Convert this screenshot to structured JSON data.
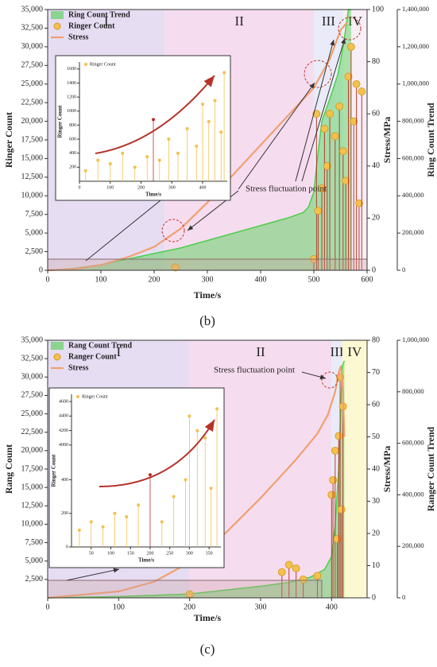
{
  "chart_data": [
    {
      "type": "combo",
      "panel": "(b)",
      "xlabel": "Time/s",
      "ylabel": "Ringer Count",
      "y2label": "Stress/MPa",
      "y3label": "Ring Count Trend",
      "annotation": "Stress fluctuation point",
      "xlim": [
        0,
        600
      ],
      "xticks": [
        0,
        100,
        200,
        300,
        400,
        500,
        600
      ],
      "ylim": [
        0,
        35000
      ],
      "yticks": [
        0,
        {
          "value": 2500,
          "label": "2,500"
        },
        {
          "value": 5000,
          "label": "5,000"
        },
        {
          "value": 7500,
          "label": "7,500"
        },
        {
          "value": 10000,
          "label": "10,000"
        },
        {
          "value": 12500,
          "label": "12,500"
        },
        {
          "value": 15000,
          "label": "15,000"
        },
        {
          "value": 17500,
          "label": "17,500"
        },
        {
          "value": 20000,
          "label": "20,000"
        },
        {
          "value": 22500,
          "label": "22,500"
        },
        {
          "value": 25000,
          "label": "25,000"
        },
        {
          "value": 27500,
          "label": "27,500"
        },
        {
          "value": 30000,
          "label": "30,000"
        },
        {
          "value": 32500,
          "label": "32,500"
        },
        {
          "value": 35000,
          "label": "35,000"
        }
      ],
      "y2lim": [
        0,
        100
      ],
      "y2ticks": [
        0,
        20,
        40,
        60,
        80,
        100
      ],
      "y3lim": [
        0,
        1400000
      ],
      "y3ticks": [
        0,
        {
          "value": 200000,
          "label": "200,000"
        },
        {
          "value": 400000,
          "label": "400,000"
        },
        {
          "value": 600000,
          "label": "600,000"
        },
        {
          "value": 800000,
          "label": "800,000"
        },
        {
          "value": 1000000,
          "label": "1,000,000"
        },
        {
          "value": 1200000,
          "label": "1,200,000"
        },
        {
          "value": 1400000,
          "label": "1,400,000"
        }
      ],
      "regions": [
        {
          "label": "I",
          "from": 0,
          "to": 220,
          "color": "#e6ddf3"
        },
        {
          "label": "II",
          "from": 220,
          "to": 500,
          "color": "#f6dcef"
        },
        {
          "label": "III",
          "from": 500,
          "to": 555,
          "color": "#e9ebf8"
        },
        {
          "label": "IV",
          "from": 555,
          "to": 600,
          "color": "#f7eef6"
        }
      ],
      "series": [
        {
          "name": "Ring Count Trend",
          "type": "area",
          "axis": "y3",
          "color": "#4ccf4c",
          "x": [
            0,
            50,
            100,
            150,
            200,
            250,
            300,
            350,
            400,
            450,
            480,
            490,
            500,
            505,
            515,
            530,
            545,
            555,
            565,
            570
          ],
          "values": [
            0,
            10000,
            30000,
            60000,
            90000,
            120000,
            160000,
            200000,
            240000,
            280000,
            310000,
            340000,
            420000,
            560000,
            800000,
            920000,
            1050000,
            1200000,
            1400000,
            1400000
          ]
        },
        {
          "name": "Ringer Count",
          "type": "scatter",
          "axis": "y",
          "color": "#f2c14e",
          "x": [
            240,
            500,
            505,
            508,
            515,
            520,
            525,
            530,
            540,
            548,
            555,
            560,
            565,
            570,
            575,
            580,
            585,
            590
          ],
          "values": [
            400,
            1500,
            21000,
            8000,
            11000,
            19000,
            14000,
            21000,
            18000,
            22000,
            16000,
            12000,
            26000,
            30000,
            20000,
            25000,
            9000,
            24000
          ]
        },
        {
          "name": "Stress",
          "type": "line",
          "axis": "y2",
          "color": "#f0a070",
          "x": [
            0,
            50,
            100,
            150,
            200,
            250,
            300,
            350,
            400,
            450,
            500,
            530,
            550,
            562
          ],
          "values": [
            0,
            0.5,
            2,
            5,
            9,
            16,
            26,
            37,
            48,
            59,
            70,
            81,
            92,
            95
          ]
        }
      ],
      "inset": {
        "xlabel": "Time/s",
        "ylabel": "Ringer Count",
        "xlim": [
          0,
          480
        ],
        "xticks": [
          0,
          100,
          200,
          300,
          400
        ],
        "ylim": [
          0,
          1700
        ],
        "yticks": [
          200,
          400,
          600,
          800,
          1000,
          1200,
          1400,
          1600
        ],
        "series": [
          {
            "name": "Ringer Count",
            "color": "#f2c14e",
            "x": [
              20,
              60,
              100,
              140,
              180,
              220,
              260,
              290,
              320,
              350,
              380,
              400,
              420,
              440,
              460,
              470
            ],
            "values": [
              150,
              300,
              250,
              400,
              200,
              350,
              300,
              600,
              400,
              750,
              500,
              1100,
              850,
              1150,
              700,
              1550
            ]
          },
          {
            "color": "#b5322a",
            "x": [
              240
            ],
            "values": [
              880
            ]
          }
        ]
      }
    },
    {
      "type": "combo",
      "panel": "(c)",
      "xlabel": "Time/s",
      "ylabel": "Rang Count",
      "y2label": "Stress/MPa",
      "y3label": "Ranger Count Trend",
      "annotation": "Stress fluctuation point",
      "xlim": [
        0,
        450
      ],
      "xticks": [
        0,
        100,
        200,
        300,
        400
      ],
      "ylim": [
        0,
        35000
      ],
      "yticks": [
        {
          "value": 2500,
          "label": "2,500"
        },
        {
          "value": 5000,
          "label": "5,000"
        },
        {
          "value": 7500,
          "label": "7,500"
        },
        {
          "value": 10000,
          "label": "10,000"
        },
        {
          "value": 12500,
          "label": "12,500"
        },
        {
          "value": 15000,
          "label": "15,000"
        },
        {
          "value": 17500,
          "label": "17,500"
        },
        {
          "value": 20000,
          "label": "20,000"
        },
        {
          "value": 22500,
          "label": "22,500"
        },
        {
          "value": 25000,
          "label": "25,000"
        },
        {
          "value": 27500,
          "label": "27,500"
        },
        {
          "value": 30000,
          "label": "30,000"
        },
        {
          "value": 32500,
          "label": "32,500"
        },
        {
          "value": 35000,
          "label": "35,000"
        }
      ],
      "y2lim": [
        0,
        80
      ],
      "y2ticks": [
        0,
        10,
        20,
        30,
        40,
        50,
        60,
        70,
        80
      ],
      "y3lim": [
        0,
        1000000
      ],
      "y3ticks": [
        0,
        {
          "value": 200000,
          "label": "200,000"
        },
        {
          "value": 400000,
          "label": "400,000"
        },
        {
          "value": 600000,
          "label": "600,000"
        },
        {
          "value": 800000,
          "label": "800,000"
        },
        {
          "value": 1000000,
          "label": "1,000,000"
        }
      ],
      "regions": [
        {
          "label": "I",
          "from": 0,
          "to": 200,
          "color": "#e6ddf3"
        },
        {
          "label": "II",
          "from": 200,
          "to": 400,
          "color": "#f6dcef"
        },
        {
          "label": "III",
          "from": 400,
          "to": 415,
          "color": "#e9ebf8"
        },
        {
          "label": "IV",
          "from": 415,
          "to": 450,
          "color": "#fbf8d2"
        }
      ],
      "series": [
        {
          "name": "Rang Count Trend",
          "type": "area",
          "axis": "y3",
          "color": "#4ccf4c",
          "x": [
            0,
            100,
            200,
            250,
            300,
            340,
            370,
            390,
            400,
            405,
            410,
            415,
            418
          ],
          "values": [
            0,
            5000,
            15000,
            30000,
            45000,
            60000,
            80000,
            110000,
            160000,
            280000,
            500000,
            900000,
            920000
          ]
        },
        {
          "name": "Ranger Count",
          "type": "scatter",
          "axis": "y",
          "color": "#f2c14e",
          "x": [
            200,
            330,
            340,
            350,
            360,
            380,
            400,
            402,
            405,
            408,
            410,
            412,
            414,
            416
          ],
          "values": [
            500,
            3500,
            4500,
            4000,
            2500,
            3000,
            14000,
            16000,
            20000,
            8000,
            22000,
            30000,
            12000,
            26000
          ]
        },
        {
          "name": "Stress",
          "type": "line",
          "axis": "y2",
          "color": "#f0a070",
          "x": [
            0,
            100,
            150,
            200,
            250,
            300,
            350,
            380,
            395,
            405,
            410,
            413,
            416,
            418
          ],
          "values": [
            0,
            2,
            5,
            11,
            20,
            31,
            43,
            51,
            57,
            64,
            70,
            72,
            65,
            50
          ]
        }
      ],
      "inset": {
        "xlabel": "Time/s",
        "ylabel": "Ringer Count",
        "xlim": [
          0,
          380
        ],
        "xticks": [
          50,
          100,
          150,
          200,
          250,
          300,
          350
        ],
        "ylim": [
          0,
          4700
        ],
        "ybreak": [
          500,
          3900
        ],
        "yticks": [
          0,
          200,
          400,
          4000,
          4200,
          4400,
          4600
        ],
        "series": [
          {
            "name": "Ringer Count",
            "color": "#f2c14e",
            "x": [
              20,
              50,
              80,
              110,
              140,
              170,
              230,
              260,
              290,
              300,
              320,
              340,
              355,
              370
            ],
            "values": [
              100,
              150,
              120,
              200,
              180,
              250,
              150,
              300,
              400,
              4400,
              4200,
              4100,
              350,
              4500
            ]
          },
          {
            "color": "#b5322a",
            "x": [
              200
            ],
            "values": [
              430
            ]
          }
        ]
      }
    }
  ]
}
